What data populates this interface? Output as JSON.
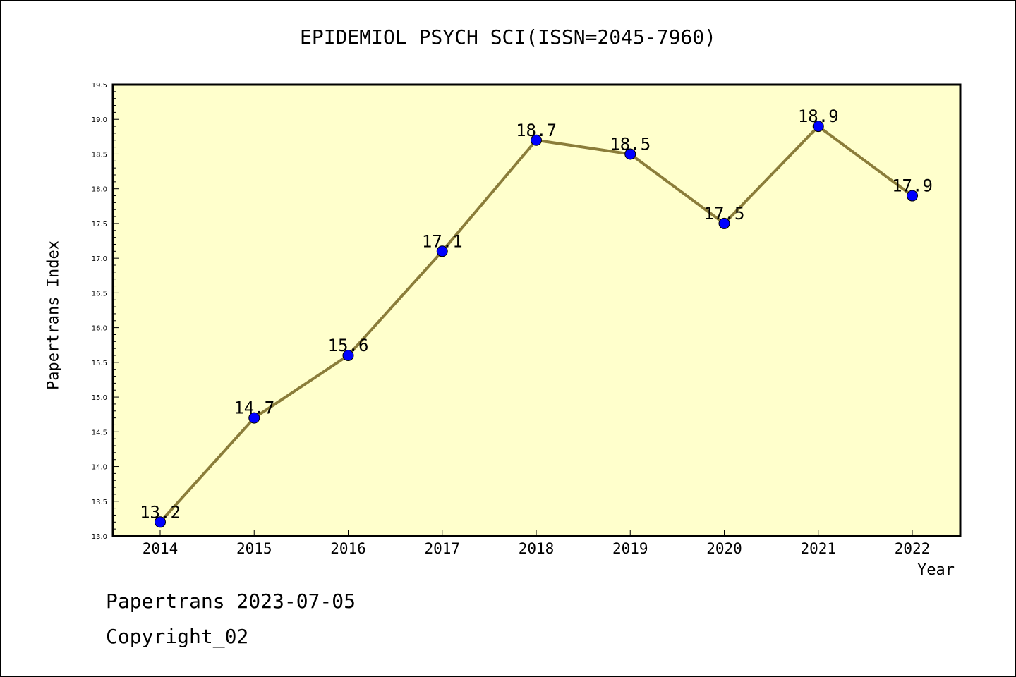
{
  "chart_data": {
    "type": "line",
    "title": "EPIDEMIOL PSYCH SCI(ISSN=2045-7960)",
    "xlabel": "Year",
    "ylabel": "Papertrans Index",
    "x": [
      "2014",
      "2015",
      "2016",
      "2017",
      "2018",
      "2019",
      "2020",
      "2021",
      "2022"
    ],
    "values": [
      13.2,
      14.7,
      15.6,
      17.1,
      18.7,
      18.5,
      17.5,
      18.9,
      17.9
    ],
    "data_labels": [
      "13.2",
      "14.7",
      "15.6",
      "17.1",
      "18.7",
      "18.5",
      "17.5",
      "18.9",
      "17.9"
    ],
    "ylim": [
      13.0,
      19.5
    ],
    "yticks": [
      "13.0",
      "13.5",
      "14.0",
      "14.5",
      "15.0",
      "15.5",
      "16.0",
      "16.5",
      "17.0",
      "17.5",
      "18.0",
      "18.5",
      "19.0",
      "19.5"
    ],
    "grid": false,
    "colors": {
      "plot_background": "#ffffcc",
      "line": "#8b7d3a",
      "marker": "#0000ff"
    }
  },
  "footer": {
    "line1": "Papertrans 2023-07-05",
    "line2": "Copyright_02"
  }
}
